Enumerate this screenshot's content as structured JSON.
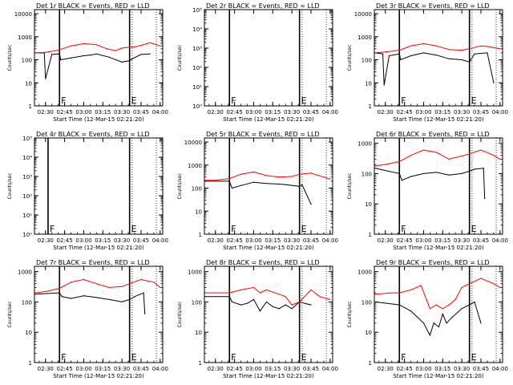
{
  "figure": {
    "xlabel": "Start Time (12-Mar-15 02:21:20)",
    "ylabel": "Counts/sec",
    "xticks": [
      "02:30",
      "02:45",
      "03:00",
      "03:15",
      "03:30",
      "03:45",
      "04:00"
    ],
    "colors": {
      "events": "#000000",
      "lld": "#ff0000",
      "axes": "#000000"
    }
  },
  "chart_data": [
    {
      "type": "line",
      "title": "Det 1r BLACK = Events, RED = LLD",
      "yscale": "log",
      "ylim": [
        1,
        15000
      ],
      "yticks": [
        "1",
        "10",
        "100",
        "1000",
        "10000"
      ],
      "markers": [
        {
          "x": "02:41",
          "label": "F"
        },
        {
          "x": "03:36",
          "label": "E"
        }
      ],
      "series": [
        {
          "name": "Events",
          "color": "#000000",
          "x": [
            "02:22",
            "02:29",
            "02:30",
            "02:35",
            "02:41",
            "02:42",
            "02:50",
            "03:00",
            "03:05",
            "03:10",
            "03:20",
            "03:30",
            "03:36",
            "03:38",
            "03:45",
            "03:52"
          ],
          "y": [
            200,
            200,
            15,
            170,
            180,
            100,
            120,
            150,
            160,
            180,
            130,
            80,
            90,
            110,
            170,
            180
          ]
        },
        {
          "name": "LLD",
          "color": "#ff0000",
          "x": [
            "02:22",
            "02:30",
            "02:40",
            "02:50",
            "03:00",
            "03:10",
            "03:18",
            "03:25",
            "03:30",
            "03:36",
            "03:40",
            "03:45",
            "03:52",
            "04:00"
          ],
          "y": [
            200,
            210,
            260,
            400,
            500,
            450,
            300,
            250,
            320,
            350,
            360,
            420,
            550,
            400
          ]
        }
      ]
    },
    {
      "type": "line",
      "title": "Det 2r BLACK = Events, RED = LLD",
      "yscale": "log",
      "ylim": [
        1,
        100000
      ],
      "yticks": [
        "10⁰",
        "10¹",
        "10²",
        "10³",
        "10⁴",
        "10⁵"
      ],
      "markers": [
        {
          "x": "02:41",
          "label": "F"
        },
        {
          "x": "03:36",
          "label": "E"
        }
      ],
      "series": []
    },
    {
      "type": "line",
      "title": "Det 3r BLACK = Events, RED = LLD",
      "yscale": "log",
      "ylim": [
        1,
        15000
      ],
      "yticks": [
        "1",
        "10",
        "100",
        "1000",
        "10000"
      ],
      "markers": [
        {
          "x": "02:41",
          "label": "F"
        },
        {
          "x": "03:36",
          "label": "E"
        }
      ],
      "series": [
        {
          "name": "Events",
          "color": "#000000",
          "x": [
            "02:22",
            "02:28",
            "02:29",
            "02:33",
            "02:41",
            "02:42",
            "02:50",
            "03:00",
            "03:10",
            "03:20",
            "03:30",
            "03:36",
            "03:40",
            "03:50",
            "03:55"
          ],
          "y": [
            200,
            180,
            8,
            150,
            180,
            100,
            150,
            200,
            160,
            110,
            100,
            80,
            180,
            200,
            10
          ]
        },
        {
          "name": "LLD",
          "color": "#ff0000",
          "x": [
            "02:22",
            "02:30",
            "02:41",
            "02:50",
            "03:00",
            "03:10",
            "03:20",
            "03:30",
            "03:36",
            "03:45",
            "03:50",
            "04:00"
          ],
          "y": [
            200,
            220,
            260,
            400,
            500,
            400,
            280,
            260,
            300,
            400,
            380,
            300
          ]
        }
      ]
    },
    {
      "type": "line",
      "title": "Det 4r BLACK = Events, RED = LLD",
      "yscale": "log",
      "ylim": [
        1,
        100000
      ],
      "yticks": [
        "10⁰",
        "10¹",
        "10²",
        "10³",
        "10⁴",
        "10⁵"
      ],
      "markers": [
        {
          "x": "02:32",
          "label": "F"
        },
        {
          "x": "03:36",
          "label": "E"
        }
      ],
      "series": []
    },
    {
      "type": "line",
      "title": "Det 5r BLACK = Events, RED = LLD",
      "yscale": "log",
      "ylim": [
        1,
        15000
      ],
      "yticks": [
        "1",
        "10",
        "100",
        "1000",
        "10000"
      ],
      "markers": [
        {
          "x": "02:41",
          "label": "F"
        },
        {
          "x": "03:36",
          "label": "E"
        }
      ],
      "series": [
        {
          "name": "Events",
          "color": "#000000",
          "x": [
            "02:22",
            "02:41",
            "02:43",
            "02:50",
            "03:00",
            "03:10",
            "03:20",
            "03:25",
            "03:36",
            "03:38",
            "03:45"
          ],
          "y": [
            200,
            200,
            100,
            130,
            180,
            160,
            150,
            140,
            120,
            140,
            20
          ]
        },
        {
          "name": "LLD",
          "color": "#ff0000",
          "x": [
            "02:22",
            "02:30",
            "02:41",
            "02:50",
            "03:00",
            "03:10",
            "03:20",
            "03:30",
            "03:36",
            "03:45",
            "03:55",
            "04:00"
          ],
          "y": [
            220,
            220,
            260,
            400,
            500,
            350,
            300,
            320,
            400,
            450,
            300,
            250
          ]
        }
      ]
    },
    {
      "type": "line",
      "title": "Det 6r BLACK = Events, RED = LLD",
      "yscale": "log",
      "ylim": [
        1,
        1500
      ],
      "yticks": [
        "1",
        "10",
        "100",
        "1000"
      ],
      "markers": [
        {
          "x": "02:41",
          "label": "F"
        },
        {
          "x": "03:36",
          "label": "E"
        }
      ],
      "series": [
        {
          "name": "Events",
          "color": "#000000",
          "x": [
            "02:22",
            "02:41",
            "02:43",
            "02:50",
            "03:00",
            "03:10",
            "03:20",
            "03:30",
            "03:36",
            "03:40",
            "03:47",
            "03:48"
          ],
          "y": [
            150,
            100,
            60,
            80,
            100,
            110,
            90,
            100,
            120,
            140,
            150,
            15
          ]
        },
        {
          "name": "LLD",
          "color": "#ff0000",
          "x": [
            "02:22",
            "02:30",
            "02:41",
            "02:50",
            "03:00",
            "03:10",
            "03:20",
            "03:30",
            "03:36",
            "03:45",
            "03:55",
            "04:00"
          ],
          "y": [
            180,
            200,
            250,
            400,
            600,
            500,
            300,
            380,
            450,
            600,
            400,
            300
          ]
        }
      ]
    },
    {
      "type": "line",
      "title": "Det 7r BLACK = Events, RED = LLD",
      "yscale": "log",
      "ylim": [
        1,
        1500
      ],
      "yticks": [
        "1",
        "10",
        "100",
        "1000"
      ],
      "markers": [
        {
          "x": "02:41",
          "label": "F"
        },
        {
          "x": "03:36",
          "label": "E"
        }
      ],
      "series": [
        {
          "name": "Events",
          "color": "#000000",
          "x": [
            "02:22",
            "02:41",
            "02:43",
            "02:50",
            "03:00",
            "03:10",
            "03:20",
            "03:30",
            "03:36",
            "03:40",
            "03:47",
            "03:48"
          ],
          "y": [
            180,
            200,
            150,
            130,
            160,
            140,
            120,
            100,
            120,
            150,
            200,
            40
          ]
        },
        {
          "name": "LLD",
          "color": "#ff0000",
          "x": [
            "02:22",
            "02:30",
            "02:41",
            "02:50",
            "03:00",
            "03:10",
            "03:20",
            "03:30",
            "03:36",
            "03:45",
            "03:55",
            "04:00"
          ],
          "y": [
            200,
            220,
            280,
            450,
            550,
            400,
            300,
            320,
            400,
            550,
            450,
            300
          ]
        }
      ]
    },
    {
      "type": "line",
      "title": "Det 8r BLACK = Events, RED = LLD",
      "yscale": "log",
      "ylim": [
        1,
        1500
      ],
      "yticks": [
        "1",
        "10",
        "100",
        "1000"
      ],
      "markers": [
        {
          "x": "02:41",
          "label": "F"
        },
        {
          "x": "03:36",
          "label": "E"
        }
      ],
      "series": [
        {
          "name": "Events",
          "color": "#000000",
          "x": [
            "02:22",
            "02:41",
            "02:43",
            "02:50",
            "02:55",
            "03:00",
            "03:05",
            "03:10",
            "03:15",
            "03:20",
            "03:25",
            "03:30",
            "03:36",
            "03:40",
            "03:45"
          ],
          "y": [
            150,
            150,
            100,
            80,
            90,
            120,
            50,
            100,
            70,
            60,
            80,
            60,
            100,
            90,
            80
          ]
        },
        {
          "name": "LLD",
          "color": "#ff0000",
          "x": [
            "02:22",
            "02:41",
            "02:45",
            "02:50",
            "03:00",
            "03:05",
            "03:10",
            "03:20",
            "03:25",
            "03:30",
            "03:36",
            "03:40",
            "03:45",
            "03:52",
            "04:00"
          ],
          "y": [
            200,
            200,
            220,
            250,
            300,
            200,
            250,
            180,
            150,
            80,
            100,
            150,
            250,
            150,
            120
          ]
        }
      ]
    },
    {
      "type": "line",
      "title": "Det 9r BLACK = Events, RED = LLD",
      "yscale": "log",
      "ylim": [
        1,
        1500
      ],
      "yticks": [
        "1",
        "10",
        "100",
        "1000"
      ],
      "markers": [
        {
          "x": "02:41",
          "label": "F"
        },
        {
          "x": "03:36",
          "label": "E"
        }
      ],
      "series": [
        {
          "name": "Events",
          "color": "#000000",
          "x": [
            "02:22",
            "02:41",
            "02:50",
            "03:00",
            "03:05",
            "03:08",
            "03:12",
            "03:15",
            "03:18",
            "03:22",
            "03:30",
            "03:36",
            "03:40",
            "03:45"
          ],
          "y": [
            100,
            80,
            50,
            20,
            8,
            20,
            15,
            40,
            20,
            30,
            60,
            80,
            100,
            20
          ]
        },
        {
          "name": "LLD",
          "color": "#ff0000",
          "x": [
            "02:22",
            "02:35",
            "02:41",
            "02:50",
            "02:58",
            "03:05",
            "03:10",
            "03:15",
            "03:20",
            "03:25",
            "03:30",
            "03:36",
            "03:45",
            "03:55",
            "04:00"
          ],
          "y": [
            180,
            200,
            200,
            250,
            350,
            60,
            80,
            60,
            80,
            120,
            300,
            400,
            600,
            400,
            300
          ]
        }
      ]
    }
  ]
}
